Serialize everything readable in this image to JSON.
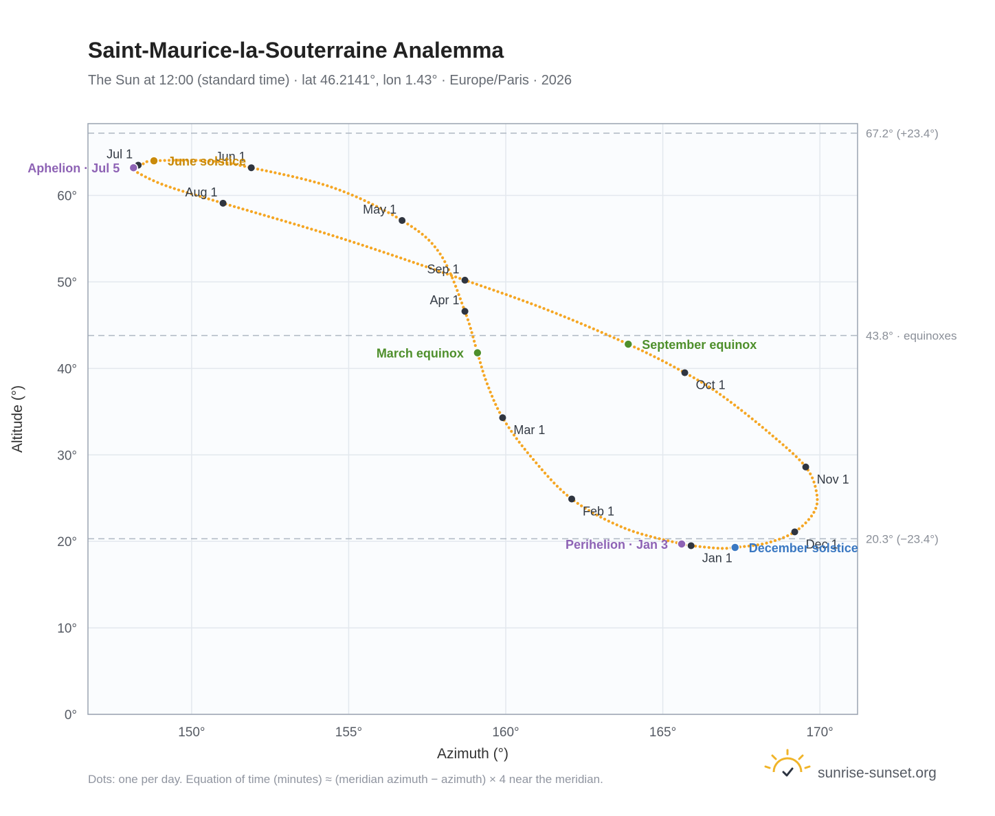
{
  "title": "Saint-Maurice-la-Souterraine Analemma",
  "subtitle": "The Sun at 12:00 (standard time) · lat 46.2141°, lon 1.43° · Europe/Paris · 2026",
  "footnote": "Dots: one per day. Equation of time (minutes) ≈ (meridian azimuth − azimuth) × 4 near the meridian.",
  "brand": {
    "name": "sunrise-sunset.org",
    "logo_icon": "sun-icon",
    "color": "#f0b429"
  },
  "chart_data": {
    "type": "scatter",
    "xlabel": "Azimuth (°)",
    "ylabel": "Altitude (°)",
    "xlim": [
      146.7,
      171.2
    ],
    "ylim": [
      0,
      68.3
    ],
    "x_ticks": [
      {
        "value": 150,
        "label": "150°"
      },
      {
        "value": 155,
        "label": "155°"
      },
      {
        "value": 160,
        "label": "160°"
      },
      {
        "value": 165,
        "label": "165°"
      },
      {
        "value": 170,
        "label": "170°"
      }
    ],
    "y_ticks": [
      {
        "value": 0,
        "label": "0°"
      },
      {
        "value": 10,
        "label": "10°"
      },
      {
        "value": 20,
        "label": "20°"
      },
      {
        "value": 30,
        "label": "30°"
      },
      {
        "value": 40,
        "label": "40°"
      },
      {
        "value": 50,
        "label": "50°"
      },
      {
        "value": 60,
        "label": "60°"
      }
    ],
    "grid": true,
    "reference_lines": [
      {
        "value": 67.2,
        "label": "67.2° (+23.4°)"
      },
      {
        "value": 43.8,
        "label": "43.8° · equinoxes"
      },
      {
        "value": 20.3,
        "label": "20.3° (−23.4°)"
      }
    ],
    "analemma_color": "#f5a623",
    "path_anchors": [
      {
        "az": 165.9,
        "alt": 19.5
      },
      {
        "az": 166.8,
        "alt": 19.2
      },
      {
        "az": 167.3,
        "alt": 19.3
      },
      {
        "az": 168.3,
        "alt": 19.8
      },
      {
        "az": 169.2,
        "alt": 21.1
      },
      {
        "az": 169.8,
        "alt": 23.3
      },
      {
        "az": 169.9,
        "alt": 25.5
      },
      {
        "az": 169.55,
        "alt": 28.6
      },
      {
        "az": 168.4,
        "alt": 32.5
      },
      {
        "az": 166.9,
        "alt": 36.8
      },
      {
        "az": 165.7,
        "alt": 39.5
      },
      {
        "az": 163.9,
        "alt": 42.8
      },
      {
        "az": 161.3,
        "alt": 46.8
      },
      {
        "az": 158.7,
        "alt": 50.2
      },
      {
        "az": 154.8,
        "alt": 55.0
      },
      {
        "az": 151.0,
        "alt": 59.1
      },
      {
        "az": 149.2,
        "alt": 61.1
      },
      {
        "az": 148.3,
        "alt": 62.6
      },
      {
        "az": 148.15,
        "alt": 63.2
      },
      {
        "az": 148.5,
        "alt": 63.7
      },
      {
        "az": 148.8,
        "alt": 64.0
      },
      {
        "az": 150.5,
        "alt": 64.0
      },
      {
        "az": 151.9,
        "alt": 63.2
      },
      {
        "az": 154.5,
        "alt": 60.9
      },
      {
        "az": 156.7,
        "alt": 57.1
      },
      {
        "az": 157.9,
        "alt": 53.3
      },
      {
        "az": 158.7,
        "alt": 46.6
      },
      {
        "az": 159.1,
        "alt": 41.8
      },
      {
        "az": 159.4,
        "alt": 38.3
      },
      {
        "az": 159.9,
        "alt": 34.3
      },
      {
        "az": 160.8,
        "alt": 29.8
      },
      {
        "az": 162.1,
        "alt": 24.9
      },
      {
        "az": 163.8,
        "alt": 21.5
      },
      {
        "az": 165.6,
        "alt": 19.7
      },
      {
        "az": 165.9,
        "alt": 19.5
      }
    ],
    "month_markers": [
      {
        "label": "Jan 1",
        "az": 165.9,
        "alt": 19.5,
        "anchor": "below-right"
      },
      {
        "label": "Feb 1",
        "az": 162.1,
        "alt": 24.9,
        "anchor": "below-right"
      },
      {
        "label": "Mar 1",
        "az": 159.9,
        "alt": 34.3,
        "anchor": "below-right"
      },
      {
        "label": "Apr 1",
        "az": 158.7,
        "alt": 46.6,
        "anchor": "above-left"
      },
      {
        "label": "May 1",
        "az": 156.7,
        "alt": 57.1,
        "anchor": "above-left"
      },
      {
        "label": "Jun 1",
        "az": 151.9,
        "alt": 63.2,
        "anchor": "above-left"
      },
      {
        "label": "Jul 1",
        "az": 148.3,
        "alt": 63.5,
        "anchor": "above-left"
      },
      {
        "label": "Aug 1",
        "az": 151.0,
        "alt": 59.1,
        "anchor": "above-left"
      },
      {
        "label": "Sep 1",
        "az": 158.7,
        "alt": 50.2,
        "anchor": "above-left"
      },
      {
        "label": "Oct 1",
        "az": 165.7,
        "alt": 39.5,
        "anchor": "below-right"
      },
      {
        "label": "Nov 1",
        "az": 169.55,
        "alt": 28.6,
        "anchor": "below-right"
      },
      {
        "label": "Dec 1",
        "az": 169.2,
        "alt": 21.1,
        "anchor": "below-right"
      }
    ],
    "events": [
      {
        "label": "March equinox",
        "az": 159.1,
        "alt": 41.8,
        "color": "#4e8f2b",
        "side": "left"
      },
      {
        "label": "September equinox",
        "az": 163.9,
        "alt": 42.8,
        "color": "#4e8f2b",
        "side": "right"
      },
      {
        "label": "June solstice",
        "az": 148.8,
        "alt": 64.0,
        "color": "#c98a0b",
        "side": "right"
      },
      {
        "label": "December solstice",
        "az": 167.3,
        "alt": 19.3,
        "color": "#3a78c2",
        "side": "right"
      },
      {
        "label": "Aphelion · Jul 5",
        "az": 148.15,
        "alt": 63.2,
        "color": "#8e63b5",
        "side": "left"
      },
      {
        "label": "Perihelion · Jan 3",
        "az": 165.6,
        "alt": 19.7,
        "color": "#8e63b5",
        "side": "left"
      }
    ]
  }
}
